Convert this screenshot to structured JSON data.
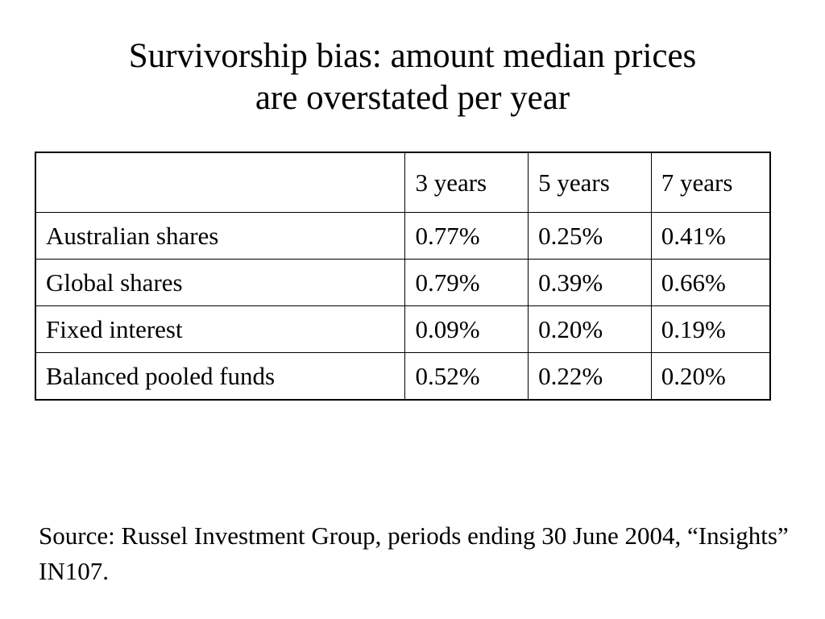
{
  "slide": {
    "title_line1": "Survivorship bias: amount median prices",
    "title_line2": "are overstated per year",
    "source": "Source: Russel Investment Group, periods ending 30 June 2004, “Insights” IN107."
  },
  "table": {
    "corner": "",
    "columns": [
      "3 years",
      "5 years",
      "7 years"
    ],
    "rows": [
      {
        "label": "Australian shares",
        "values": [
          "0.77%",
          "0.25%",
          "0.41%"
        ]
      },
      {
        "label": "Global shares",
        "values": [
          "0.79%",
          "0.39%",
          "0.66%"
        ]
      },
      {
        "label": "Fixed interest",
        "values": [
          "0.09%",
          "0.20%",
          "0.19%"
        ]
      },
      {
        "label": "Balanced pooled funds",
        "values": [
          "0.52%",
          "0.22%",
          "0.20%"
        ]
      }
    ]
  },
  "chart_data": {
    "type": "table",
    "title": "Survivorship bias: amount median prices are overstated per year",
    "columns": [
      "3 years",
      "5 years",
      "7 years"
    ],
    "rows": [
      "Australian shares",
      "Global shares",
      "Fixed interest",
      "Balanced pooled funds"
    ],
    "unit": "%",
    "values": [
      [
        0.77,
        0.25,
        0.41
      ],
      [
        0.79,
        0.39,
        0.66
      ],
      [
        0.09,
        0.2,
        0.19
      ],
      [
        0.52,
        0.22,
        0.2
      ]
    ]
  }
}
